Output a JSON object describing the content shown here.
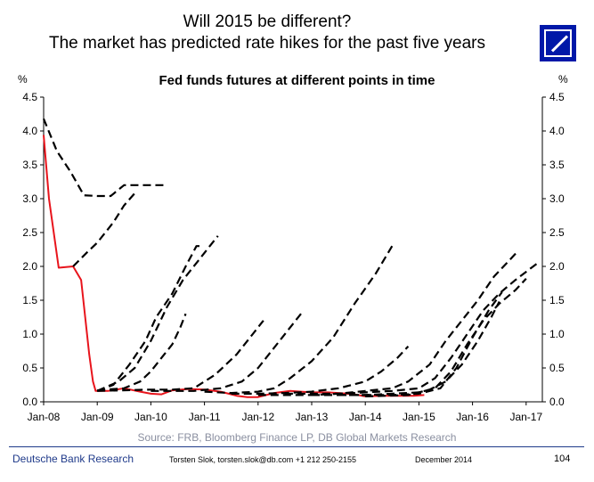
{
  "header": {
    "title_line1": "Will 2015 be different?",
    "title_line2": "The market has predicted rate hikes for the past five years",
    "logo_icon": "deutsche-bank-logo-icon"
  },
  "chart_data": {
    "type": "line",
    "title": "Fed funds futures at different points in time",
    "ylabel_left": "%",
    "ylabel_right": "%",
    "ylim": [
      0,
      4.5
    ],
    "yticks": [
      "0.0",
      "0.5",
      "1.0",
      "1.5",
      "2.0",
      "2.5",
      "3.0",
      "3.5",
      "4.0",
      "4.5"
    ],
    "xticks": [
      "Jan-08",
      "Jan-09",
      "Jan-10",
      "Jan-11",
      "Jan-12",
      "Jan-13",
      "Jan-14",
      "Jan-15",
      "Jan-16",
      "Jan-17"
    ],
    "x_unit": "years since Jan-08",
    "xlim": [
      0,
      9.25
    ],
    "grid": false,
    "series": [
      {
        "style": "actual",
        "color": "#e8141c",
        "points": [
          [
            0,
            3.94
          ],
          [
            0.1,
            3.0
          ],
          [
            0.28,
            1.98
          ],
          [
            0.55,
            2.0
          ],
          [
            0.7,
            1.8
          ],
          [
            0.85,
            0.7
          ],
          [
            0.92,
            0.3
          ],
          [
            0.97,
            0.16
          ],
          [
            1.2,
            0.16
          ],
          [
            1.5,
            0.2
          ],
          [
            1.8,
            0.15
          ],
          [
            2.0,
            0.12
          ],
          [
            2.2,
            0.11
          ],
          [
            2.4,
            0.17
          ],
          [
            2.7,
            0.19
          ],
          [
            3.0,
            0.18
          ],
          [
            3.3,
            0.15
          ],
          [
            3.6,
            0.09
          ],
          [
            3.8,
            0.07
          ],
          [
            4.0,
            0.07
          ],
          [
            4.3,
            0.13
          ],
          [
            4.6,
            0.16
          ],
          [
            4.8,
            0.15
          ],
          [
            5.0,
            0.14
          ],
          [
            5.3,
            0.14
          ],
          [
            5.5,
            0.13
          ],
          [
            5.8,
            0.11
          ],
          [
            6.0,
            0.08
          ],
          [
            6.3,
            0.09
          ],
          [
            6.6,
            0.09
          ],
          [
            6.9,
            0.09
          ],
          [
            7.1,
            0.1
          ]
        ]
      },
      {
        "style": "futures",
        "color": "#000000",
        "points": [
          [
            0,
            4.18
          ],
          [
            0.25,
            3.7
          ],
          [
            0.5,
            3.4
          ],
          [
            0.75,
            3.05
          ],
          [
            1.0,
            3.04
          ],
          [
            1.25,
            3.04
          ],
          [
            1.5,
            3.2
          ],
          [
            2.3,
            3.2
          ]
        ]
      },
      {
        "style": "futures",
        "color": "#000000",
        "points": [
          [
            0.55,
            2.0
          ],
          [
            0.8,
            2.2
          ],
          [
            1.0,
            2.35
          ],
          [
            1.3,
            2.65
          ],
          [
            1.5,
            2.9
          ],
          [
            1.7,
            3.08
          ]
        ]
      },
      {
        "style": "futures",
        "color": "#000000",
        "points": [
          [
            1.0,
            0.16
          ],
          [
            1.3,
            0.25
          ],
          [
            1.6,
            0.55
          ],
          [
            1.9,
            0.9
          ],
          [
            2.1,
            1.25
          ],
          [
            2.4,
            1.6
          ],
          [
            2.65,
            2.0
          ],
          [
            2.85,
            2.3
          ],
          [
            2.95,
            2.3
          ]
        ]
      },
      {
        "style": "futures",
        "color": "#000000",
        "points": [
          [
            1.0,
            0.16
          ],
          [
            1.4,
            0.3
          ],
          [
            1.7,
            0.5
          ],
          [
            2.0,
            0.9
          ],
          [
            2.3,
            1.4
          ],
          [
            2.6,
            1.8
          ],
          [
            2.9,
            2.1
          ],
          [
            3.1,
            2.3
          ],
          [
            3.25,
            2.45
          ]
        ]
      },
      {
        "style": "futures",
        "color": "#000000",
        "points": [
          [
            1.0,
            0.17
          ],
          [
            1.5,
            0.2
          ],
          [
            1.8,
            0.3
          ],
          [
            2.0,
            0.45
          ],
          [
            2.2,
            0.65
          ],
          [
            2.4,
            0.85
          ],
          [
            2.55,
            1.1
          ],
          [
            2.65,
            1.3
          ]
        ]
      },
      {
        "style": "futures",
        "color": "#000000",
        "points": [
          [
            1.0,
            0.16
          ],
          [
            2.0,
            0.18
          ],
          [
            2.4,
            0.18
          ],
          [
            2.8,
            0.2
          ],
          [
            3.2,
            0.4
          ],
          [
            3.6,
            0.7
          ],
          [
            3.9,
            1.0
          ],
          [
            4.1,
            1.2
          ]
        ]
      },
      {
        "style": "futures",
        "color": "#000000",
        "points": [
          [
            2.0,
            0.16
          ],
          [
            2.8,
            0.16
          ],
          [
            3.3,
            0.2
          ],
          [
            3.7,
            0.3
          ],
          [
            4.0,
            0.5
          ],
          [
            4.3,
            0.8
          ],
          [
            4.6,
            1.1
          ],
          [
            4.8,
            1.3
          ]
        ]
      },
      {
        "style": "futures",
        "color": "#000000",
        "points": [
          [
            3.0,
            0.15
          ],
          [
            3.5,
            0.13
          ],
          [
            4.0,
            0.15
          ],
          [
            4.3,
            0.2
          ],
          [
            4.6,
            0.35
          ],
          [
            5.0,
            0.6
          ],
          [
            5.4,
            0.95
          ],
          [
            5.8,
            1.45
          ],
          [
            6.2,
            1.9
          ],
          [
            6.5,
            2.3
          ]
        ]
      },
      {
        "style": "futures",
        "color": "#000000",
        "points": [
          [
            3.5,
            0.12
          ],
          [
            4.0,
            0.12
          ],
          [
            4.5,
            0.13
          ],
          [
            5.0,
            0.15
          ],
          [
            5.5,
            0.2
          ],
          [
            6.0,
            0.3
          ],
          [
            6.3,
            0.45
          ],
          [
            6.6,
            0.65
          ],
          [
            6.8,
            0.82
          ]
        ]
      },
      {
        "style": "futures",
        "color": "#000000",
        "points": [
          [
            4.0,
            0.1
          ],
          [
            5.0,
            0.1
          ],
          [
            5.5,
            0.12
          ],
          [
            6.0,
            0.16
          ],
          [
            6.5,
            0.2
          ],
          [
            6.8,
            0.3
          ],
          [
            7.2,
            0.55
          ],
          [
            7.5,
            0.9
          ],
          [
            7.8,
            1.2
          ],
          [
            8.1,
            1.5
          ],
          [
            8.4,
            1.85
          ],
          [
            8.7,
            2.1
          ],
          [
            8.85,
            2.23
          ]
        ]
      },
      {
        "style": "futures",
        "color": "#000000",
        "points": [
          [
            4.5,
            0.12
          ],
          [
            5.5,
            0.12
          ],
          [
            6.0,
            0.14
          ],
          [
            6.5,
            0.16
          ],
          [
            7.0,
            0.2
          ],
          [
            7.3,
            0.35
          ],
          [
            7.6,
            0.65
          ],
          [
            7.9,
            1.0
          ],
          [
            8.2,
            1.35
          ],
          [
            8.5,
            1.6
          ],
          [
            8.8,
            1.8
          ],
          [
            9.1,
            1.98
          ],
          [
            9.25,
            2.07
          ]
        ]
      },
      {
        "style": "futures",
        "color": "#000000",
        "points": [
          [
            5.0,
            0.1
          ],
          [
            6.0,
            0.1
          ],
          [
            6.5,
            0.12
          ],
          [
            7.0,
            0.14
          ],
          [
            7.3,
            0.2
          ],
          [
            7.6,
            0.45
          ],
          [
            7.9,
            0.85
          ],
          [
            8.2,
            1.2
          ],
          [
            8.5,
            1.45
          ],
          [
            8.8,
            1.65
          ],
          [
            9.0,
            1.82
          ]
        ]
      },
      {
        "style": "futures",
        "color": "#000000",
        "points": [
          [
            5.5,
            0.1
          ],
          [
            6.5,
            0.1
          ],
          [
            7.0,
            0.12
          ],
          [
            7.4,
            0.2
          ],
          [
            7.7,
            0.5
          ],
          [
            8.0,
            0.95
          ],
          [
            8.3,
            1.35
          ],
          [
            8.55,
            1.62
          ]
        ]
      },
      {
        "style": "futures",
        "color": "#000000",
        "points": [
          [
            6.0,
            0.08
          ],
          [
            6.8,
            0.1
          ],
          [
            7.2,
            0.18
          ],
          [
            7.5,
            0.3
          ],
          [
            7.8,
            0.55
          ],
          [
            8.1,
            0.9
          ],
          [
            8.35,
            1.25
          ],
          [
            8.5,
            1.48
          ]
        ]
      }
    ]
  },
  "source": "Source: FRB, Bloomberg Finance LP, DB Global Markets Research",
  "footer": {
    "brand": "Deutsche Bank Research",
    "author": "Torsten Slok, torsten.slok@db.com  +1 212 250-2155",
    "date": "December 2014",
    "page": "104"
  }
}
